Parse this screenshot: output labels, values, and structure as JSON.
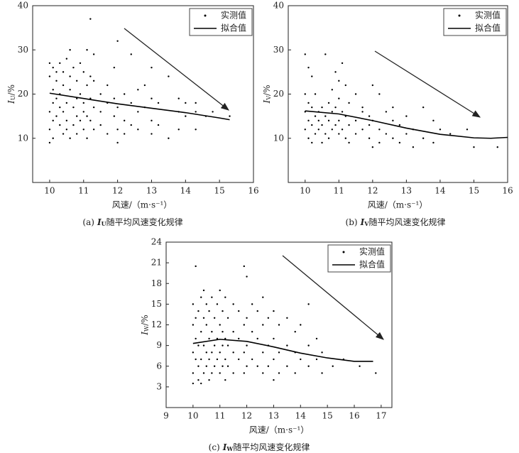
{
  "chart_data": [
    {
      "type": "scatter",
      "caption_label": "(a)",
      "caption_symbol": "I",
      "caption_sub": "U",
      "caption_text": "随平均风速变化规律",
      "xlabel": "风速/（m·s⁻¹）",
      "ylabel_symbol": "I",
      "ylabel_sub": "U",
      "ylabel_unit": "/%",
      "xlim": [
        9.5,
        16
      ],
      "xticks": [
        10,
        11,
        12,
        13,
        14,
        15,
        16
      ],
      "ylim": [
        0,
        40
      ],
      "yticks": [
        10,
        20,
        30,
        40
      ],
      "series": [
        {
          "name": "实测值",
          "color": "#000000",
          "style": "points",
          "x": [
            10.0,
            10.0,
            10.0,
            10.0,
            10.0,
            10.1,
            10.1,
            10.1,
            10.1,
            10.1,
            10.2,
            10.2,
            10.2,
            10.2,
            10.3,
            10.3,
            10.3,
            10.3,
            10.4,
            10.4,
            10.4,
            10.4,
            10.5,
            10.5,
            10.5,
            10.5,
            10.6,
            10.6,
            10.6,
            10.6,
            10.7,
            10.7,
            10.7,
            10.8,
            10.8,
            10.8,
            10.8,
            10.9,
            10.9,
            10.9,
            11.0,
            11.0,
            11.0,
            11.0,
            11.1,
            11.1,
            11.1,
            11.1,
            11.2,
            11.2,
            11.2,
            11.2,
            11.3,
            11.3,
            11.3,
            11.3,
            11.5,
            11.5,
            11.5,
            11.7,
            11.7,
            11.7,
            11.9,
            11.9,
            11.9,
            12.0,
            12.0,
            12.0,
            12.0,
            12.2,
            12.2,
            12.2,
            12.4,
            12.4,
            12.4,
            12.6,
            12.6,
            12.6,
            12.8,
            12.8,
            13.0,
            13.0,
            13.0,
            13.0,
            13.2,
            13.2,
            13.5,
            13.5,
            13.8,
            13.8,
            13.8,
            14.0,
            14.0,
            14.3,
            14.3,
            14.3,
            14.6,
            14.8,
            15.3
          ],
          "values": [
            24,
            16,
            12,
            9,
            27,
            26,
            21,
            18,
            14,
            10,
            25,
            19,
            15,
            23,
            27,
            20,
            13,
            17,
            22,
            16,
            11,
            25,
            28,
            18,
            14,
            12,
            30,
            21,
            10,
            24,
            26,
            17,
            13,
            23,
            19,
            15,
            11,
            20,
            14,
            27,
            25,
            18,
            12,
            16,
            30,
            22,
            10,
            15,
            37,
            19,
            14,
            24,
            23,
            17,
            12,
            29,
            20,
            16,
            13,
            22,
            18,
            11,
            19,
            15,
            26,
            32,
            17,
            9,
            12,
            20,
            14,
            11,
            29,
            18,
            13,
            16,
            21,
            12,
            22,
            17,
            26,
            19,
            14,
            11,
            18,
            13,
            24,
            10,
            19,
            16,
            12,
            18,
            15,
            18,
            16,
            12,
            15,
            16,
            15
          ]
        },
        {
          "name": "拟合值",
          "color": "#000000",
          "style": "line",
          "x": [
            10,
            11,
            12,
            13,
            14,
            15,
            15.3
          ],
          "values": [
            20.2,
            19,
            17.8,
            16.8,
            15.8,
            14.6,
            14.2
          ]
        }
      ]
    },
    {
      "type": "scatter",
      "caption_label": "(b)",
      "caption_symbol": "I",
      "caption_sub": "V",
      "caption_text": "随平均风速变化规律",
      "xlabel": "风速/（m·s⁻¹）",
      "ylabel_symbol": "I",
      "ylabel_sub": "V",
      "ylabel_unit": "/%",
      "xlim": [
        9.5,
        16
      ],
      "xticks": [
        10,
        11,
        12,
        13,
        14,
        15,
        16
      ],
      "ylim": [
        0,
        40
      ],
      "yticks": [
        10,
        20,
        30,
        40
      ],
      "series": [
        {
          "name": "实测值",
          "color": "#000000",
          "style": "points",
          "x": [
            10.0,
            10.0,
            10.0,
            10.0,
            10.1,
            10.1,
            10.1,
            10.1,
            10.2,
            10.2,
            10.2,
            10.2,
            10.3,
            10.3,
            10.3,
            10.4,
            10.4,
            10.4,
            10.5,
            10.5,
            10.5,
            10.6,
            10.6,
            10.6,
            10.7,
            10.7,
            10.7,
            10.8,
            10.8,
            10.8,
            10.9,
            10.9,
            10.9,
            11.0,
            11.0,
            11.0,
            11.0,
            11.1,
            11.1,
            11.1,
            11.2,
            11.2,
            11.2,
            11.3,
            11.3,
            11.3,
            11.5,
            11.5,
            11.5,
            11.7,
            11.7,
            11.7,
            11.9,
            11.9,
            11.9,
            12.0,
            12.0,
            12.0,
            12.2,
            12.2,
            12.2,
            12.4,
            12.4,
            12.6,
            12.6,
            12.6,
            12.8,
            12.8,
            13.0,
            13.0,
            13.2,
            13.2,
            13.5,
            13.5,
            13.8,
            13.8,
            14.0,
            14.3,
            14.8,
            15.0,
            15.7
          ],
          "values": [
            29,
            16,
            12,
            20,
            26,
            14,
            10,
            18,
            24,
            13,
            17,
            9,
            15,
            11,
            20,
            16,
            12,
            14,
            17,
            13,
            9,
            29,
            15,
            11,
            18,
            14,
            10,
            21,
            16,
            12,
            25,
            17,
            13,
            19,
            14,
            11,
            23,
            27,
            16,
            12,
            22,
            15,
            10,
            18,
            13,
            9,
            20,
            14,
            11,
            17,
            12,
            16,
            15,
            10,
            13,
            22,
            14,
            8,
            20,
            12,
            9,
            16,
            11,
            14,
            10,
            17,
            13,
            9,
            15,
            11,
            12,
            8,
            17,
            10,
            14,
            9,
            12,
            11,
            12,
            8,
            8
          ]
        },
        {
          "name": "拟合值",
          "color": "#000000",
          "style": "line",
          "x": [
            10,
            11,
            12,
            13,
            14,
            15,
            15.5,
            16
          ],
          "values": [
            16.2,
            15.5,
            14,
            12.3,
            10.9,
            10.1,
            10,
            10.2
          ]
        }
      ]
    },
    {
      "type": "scatter",
      "caption_label": "(c)",
      "caption_symbol": "I",
      "caption_sub": "W",
      "caption_text": "随平均风速变化规律",
      "xlabel": "风速/（m·s⁻¹）",
      "ylabel_symbol": "I",
      "ylabel_sub": "W",
      "ylabel_unit": "/%",
      "xlim": [
        9,
        17.4
      ],
      "xticks": [
        9,
        10,
        11,
        12,
        13,
        14,
        15,
        16,
        17
      ],
      "ylim": [
        0,
        24
      ],
      "yticks": [
        3,
        6,
        9,
        12,
        15,
        18,
        21,
        24
      ],
      "series": [
        {
          "name": "实测值",
          "color": "#000000",
          "style": "points",
          "x": [
            10.0,
            10.0,
            10.0,
            10.0,
            10.0,
            10.1,
            10.1,
            10.1,
            10.1,
            10.2,
            10.2,
            10.2,
            10.2,
            10.3,
            10.3,
            10.3,
            10.3,
            10.4,
            10.4,
            10.4,
            10.4,
            10.5,
            10.5,
            10.5,
            10.5,
            10.6,
            10.6,
            10.6,
            10.6,
            10.7,
            10.7,
            10.7,
            10.7,
            10.8,
            10.8,
            10.8,
            10.9,
            10.9,
            10.9,
            11.0,
            11.0,
            11.0,
            11.0,
            11.1,
            11.1,
            11.1,
            11.1,
            11.2,
            11.2,
            11.2,
            11.2,
            11.3,
            11.3,
            11.3,
            11.5,
            11.5,
            11.5,
            11.5,
            11.7,
            11.7,
            11.7,
            11.9,
            11.9,
            11.9,
            11.9,
            12.0,
            12.0,
            12.0,
            12.0,
            12.2,
            12.2,
            12.2,
            12.4,
            12.4,
            12.4,
            12.6,
            12.6,
            12.6,
            12.6,
            12.8,
            12.8,
            12.8,
            13.0,
            13.0,
            13.0,
            13.0,
            13.2,
            13.2,
            13.2,
            13.5,
            13.5,
            13.5,
            13.8,
            13.8,
            13.8,
            14.0,
            14.0,
            14.3,
            14.3,
            14.3,
            14.6,
            14.6,
            14.8,
            14.8,
            15.2,
            15.6,
            16.2,
            16.8
          ],
          "values": [
            12,
            8,
            5,
            15,
            3.5,
            20.5,
            10,
            7,
            13,
            14,
            9,
            6,
            4,
            16,
            11,
            7,
            3.5,
            13,
            9,
            5,
            17,
            12,
            8,
            6,
            15,
            14,
            10,
            7,
            4,
            16,
            11,
            8,
            5,
            13,
            9,
            6,
            15,
            10,
            7,
            17,
            12,
            8,
            5,
            14,
            9,
            6,
            11,
            16,
            10,
            7,
            4,
            13,
            9,
            6,
            15,
            11,
            8,
            5,
            14,
            10,
            7,
            20.5,
            12,
            8,
            5,
            19,
            13,
            9,
            6,
            15,
            11,
            7,
            14,
            10,
            6,
            16,
            12,
            8,
            5,
            13,
            9,
            6,
            14,
            10,
            7,
            4,
            12,
            8,
            5,
            13,
            9,
            6,
            11,
            8,
            5,
            12,
            7,
            15,
            9,
            6,
            10,
            7,
            8,
            5,
            6,
            7,
            6,
            5
          ]
        },
        {
          "name": "拟合值",
          "color": "#000000",
          "style": "line",
          "x": [
            10,
            11,
            12,
            13,
            14,
            15,
            16,
            16.7
          ],
          "values": [
            9.3,
            9.9,
            9.6,
            8.8,
            7.9,
            7.2,
            6.7,
            6.7
          ]
        }
      ]
    }
  ]
}
